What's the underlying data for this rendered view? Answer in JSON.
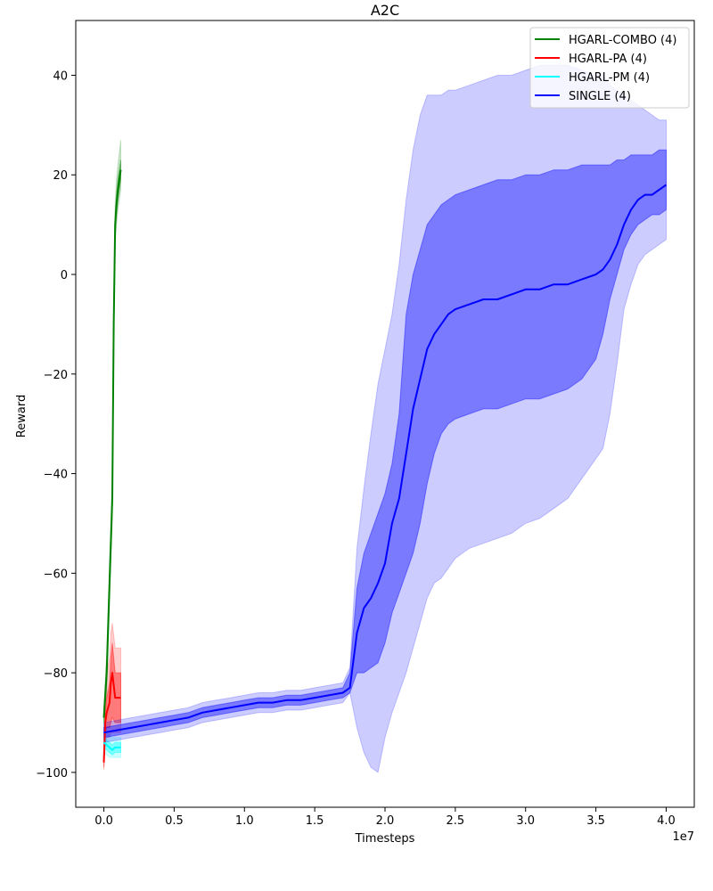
{
  "chart_data": {
    "type": "line",
    "title": "A2C",
    "xlabel": "Timesteps",
    "ylabel": "Reward",
    "x_offset_label": "1e7",
    "xlim": [
      -0.2,
      4.2
    ],
    "ylim": [
      -107,
      51
    ],
    "x_ticks": [
      0.0,
      0.5,
      1.0,
      1.5,
      2.0,
      2.5,
      3.0,
      3.5,
      4.0
    ],
    "x_tick_labels": [
      "0.0",
      "0.5",
      "1.0",
      "1.5",
      "2.0",
      "2.5",
      "3.0",
      "3.5",
      "4.0"
    ],
    "y_ticks": [
      -100,
      -80,
      -60,
      -40,
      -20,
      0,
      20,
      40
    ],
    "y_tick_labels": [
      "−100",
      "−80",
      "−60",
      "−40",
      "−20",
      "0",
      "20",
      "40"
    ],
    "legend_position": "top-right",
    "grid": false,
    "series": [
      {
        "name": "HGARL-COMBO (4)",
        "color": "#008000",
        "x": [
          0.0,
          0.02,
          0.04,
          0.06,
          0.07,
          0.08,
          0.09,
          0.1,
          0.12
        ],
        "mean": [
          -89,
          -80,
          -62,
          -45,
          -10,
          10,
          14,
          17,
          21
        ],
        "inner_lo": [
          -90,
          -82,
          -64,
          -47,
          -12,
          8,
          12,
          15,
          19
        ],
        "inner_hi": [
          -88,
          -78,
          -60,
          -43,
          -8,
          12,
          16,
          19,
          23
        ],
        "outer_lo": [
          -91,
          -84,
          -66,
          -49,
          -14,
          6,
          10,
          13,
          17
        ],
        "outer_hi": [
          -87,
          -76,
          -58,
          -41,
          -6,
          14,
          19,
          22,
          27
        ]
      },
      {
        "name": "HGARL-PA (4)",
        "color": "#ff0000",
        "x": [
          0.0,
          0.01,
          0.02,
          0.04,
          0.05,
          0.06,
          0.08,
          0.1,
          0.12
        ],
        "mean": [
          -98,
          -90,
          -88,
          -86,
          -82,
          -80,
          -85,
          -85,
          -85
        ],
        "inner_lo": [
          -99,
          -92,
          -91,
          -91,
          -90,
          -89,
          -90,
          -90,
          -90
        ],
        "inner_hi": [
          -97,
          -88,
          -85,
          -82,
          -77,
          -74,
          -80,
          -80,
          -80
        ],
        "outer_lo": [
          -99.5,
          -94,
          -93,
          -93,
          -92,
          -92,
          -92,
          -92,
          -92
        ],
        "outer_hi": [
          -96,
          -86,
          -80,
          -77,
          -72,
          -70,
          -75,
          -75,
          -75
        ]
      },
      {
        "name": "HGARL-PM (4)",
        "color": "#00ffff",
        "x": [
          0.0,
          0.02,
          0.04,
          0.06,
          0.08,
          0.1,
          0.12
        ],
        "mean": [
          -94,
          -94.5,
          -95,
          -95.5,
          -95,
          -95,
          -95
        ],
        "inner_lo": [
          -95,
          -95.5,
          -96,
          -96.5,
          -96,
          -96,
          -96
        ],
        "inner_hi": [
          -93,
          -93.5,
          -94,
          -94.5,
          -94,
          -94,
          -94
        ],
        "outer_lo": [
          -96,
          -96.5,
          -97,
          -97,
          -97,
          -97,
          -97
        ],
        "outer_hi": [
          -91,
          -92,
          -92.5,
          -93,
          -93,
          -93,
          -93
        ]
      },
      {
        "name": "SINGLE (4)",
        "color": "#0000ff",
        "x": [
          0.0,
          0.1,
          0.2,
          0.3,
          0.4,
          0.5,
          0.6,
          0.7,
          0.8,
          0.9,
          1.0,
          1.1,
          1.2,
          1.3,
          1.4,
          1.5,
          1.6,
          1.7,
          1.75,
          1.8,
          1.85,
          1.9,
          1.95,
          2.0,
          2.05,
          2.1,
          2.15,
          2.2,
          2.25,
          2.3,
          2.35,
          2.4,
          2.45,
          2.5,
          2.6,
          2.7,
          2.8,
          2.9,
          3.0,
          3.1,
          3.2,
          3.3,
          3.4,
          3.5,
          3.55,
          3.6,
          3.65,
          3.7,
          3.75,
          3.8,
          3.85,
          3.9,
          3.95,
          4.0
        ],
        "mean": [
          -92,
          -91.5,
          -91,
          -90.5,
          -90,
          -89.5,
          -89,
          -88,
          -87.5,
          -87,
          -86.5,
          -86,
          -86,
          -85.5,
          -85.5,
          -85,
          -84.5,
          -84,
          -83,
          -72,
          -67,
          -65,
          -62,
          -58,
          -50,
          -45,
          -36,
          -27,
          -21,
          -15,
          -12,
          -10,
          -8,
          -7,
          -6,
          -5,
          -5,
          -4,
          -3,
          -3,
          -2,
          -2,
          -1,
          0,
          1,
          3,
          6,
          10,
          13,
          15,
          16,
          16,
          17,
          18
        ],
        "inner_lo": [
          -93,
          -92.5,
          -92,
          -91.5,
          -91,
          -90.5,
          -90,
          -89,
          -88.5,
          -88,
          -87.5,
          -87,
          -87,
          -86.5,
          -86.5,
          -86,
          -85.5,
          -85,
          -84,
          -80,
          -80,
          -79,
          -78,
          -74,
          -68,
          -64,
          -60,
          -56,
          -50,
          -42,
          -36,
          -32,
          -30,
          -29,
          -28,
          -27,
          -27,
          -26,
          -25,
          -25,
          -24,
          -23,
          -21,
          -17,
          -12,
          -5,
          0,
          5,
          8,
          10,
          11,
          12,
          12,
          13
        ],
        "inner_hi": [
          -91,
          -90.5,
          -90,
          -89.5,
          -89,
          -88.5,
          -88,
          -87,
          -86.5,
          -86,
          -85.5,
          -85,
          -85,
          -84.5,
          -84.5,
          -84,
          -83.5,
          -83,
          -80,
          -63,
          -56,
          -52,
          -48,
          -44,
          -38,
          -28,
          -8,
          0,
          5,
          10,
          12,
          14,
          15,
          16,
          17,
          18,
          19,
          19,
          20,
          20,
          21,
          21,
          22,
          22,
          22,
          22,
          23,
          23,
          24,
          24,
          24,
          24,
          25,
          25
        ],
        "outer_lo": [
          -94,
          -93.5,
          -93,
          -92.5,
          -92,
          -91.5,
          -91,
          -90,
          -89.5,
          -89,
          -88.5,
          -88,
          -88,
          -87.5,
          -87.5,
          -87,
          -86.5,
          -86,
          -84,
          -91,
          -96,
          -99,
          -100,
          -93,
          -88,
          -84,
          -80,
          -75,
          -70,
          -65,
          -62,
          -61,
          -59,
          -57,
          -55,
          -54,
          -53,
          -52,
          -50,
          -49,
          -47,
          -45,
          -41,
          -37,
          -35,
          -28,
          -18,
          -7,
          -2,
          2,
          4,
          5,
          6,
          7
        ],
        "outer_hi": [
          -90,
          -89.5,
          -89,
          -88.5,
          -88,
          -87.5,
          -87,
          -86,
          -85.5,
          -85,
          -84.5,
          -84,
          -84,
          -83.5,
          -83.5,
          -83,
          -82.5,
          -82,
          -79,
          -55,
          -43,
          -32,
          -22,
          -15,
          -8,
          2,
          15,
          25,
          32,
          36,
          36,
          36,
          37,
          37,
          38,
          39,
          40,
          40,
          41,
          42,
          42,
          42,
          41,
          40,
          40,
          38,
          37,
          36,
          35,
          34,
          33,
          32,
          31,
          31
        ]
      }
    ]
  }
}
